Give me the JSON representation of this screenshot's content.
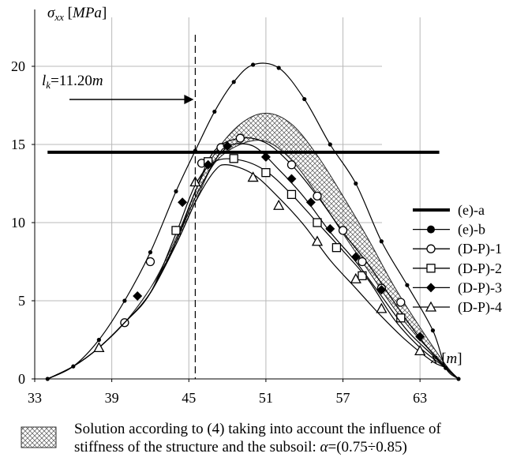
{
  "chart_data": {
    "type": "line",
    "ylabel_symbol": "σ",
    "ylabel_sub": "xx",
    "ylabel_unit": "MPa",
    "xlabel_var": "x",
    "xlabel_unit": "m",
    "xticks": [
      33,
      39,
      45,
      51,
      57,
      63
    ],
    "yticks": [
      0,
      5,
      10,
      15,
      20
    ],
    "xlim": [
      33,
      66
    ],
    "ylim": [
      0,
      21
    ],
    "grid": true,
    "legend_position": "right",
    "annotation": {
      "var": "l",
      "sub": "k",
      "value": "=11.20",
      "unit": "m",
      "x": 45.5
    },
    "hatched_band": {
      "lower": [
        [
          34,
          0
        ],
        [
          36,
          0.8
        ],
        [
          38,
          2.0
        ],
        [
          40,
          3.6
        ],
        [
          42,
          5.8
        ],
        [
          44,
          8.6
        ],
        [
          45.5,
          11.3
        ],
        [
          47,
          13.8
        ],
        [
          49,
          15.0
        ],
        [
          51,
          15.2
        ],
        [
          53,
          14.0
        ],
        [
          55,
          11.8
        ],
        [
          57,
          9.3
        ],
        [
          59,
          6.9
        ],
        [
          61,
          4.5
        ],
        [
          63,
          2.5
        ],
        [
          65,
          0.8
        ],
        [
          66,
          0
        ]
      ],
      "upper": [
        [
          34,
          0
        ],
        [
          36,
          0.8
        ],
        [
          38,
          2.0
        ],
        [
          40,
          3.6
        ],
        [
          42,
          5.8
        ],
        [
          44,
          9.0
        ],
        [
          45.5,
          12.0
        ],
        [
          47,
          14.4
        ],
        [
          49,
          16.3
        ],
        [
          51,
          17.0
        ],
        [
          53,
          16.3
        ],
        [
          55,
          14.3
        ],
        [
          57,
          11.7
        ],
        [
          59,
          8.9
        ],
        [
          61,
          5.9
        ],
        [
          63,
          3.3
        ],
        [
          65,
          0.9
        ],
        [
          66,
          0
        ]
      ]
    },
    "series": [
      {
        "name": "(e)-a",
        "marker": "none",
        "line_width": 4,
        "points": [
          [
            34,
            14.5
          ],
          [
            64.5,
            14.5
          ]
        ],
        "markers": []
      },
      {
        "name": "(e)-b",
        "marker": "dot",
        "line_width": 1.2,
        "points": [
          [
            34,
            0
          ],
          [
            36,
            0.8
          ],
          [
            38,
            2.5
          ],
          [
            40,
            5.0
          ],
          [
            42,
            8.1
          ],
          [
            44,
            12.0
          ],
          [
            45.5,
            14.6
          ],
          [
            47,
            17.1
          ],
          [
            48.5,
            19.0
          ],
          [
            50,
            20.1
          ],
          [
            52,
            19.9
          ],
          [
            54,
            17.9
          ],
          [
            56,
            15.0
          ],
          [
            58,
            12.5
          ],
          [
            60,
            8.8
          ],
          [
            62,
            6.0
          ],
          [
            64,
            3.1
          ],
          [
            65,
            0.7
          ],
          [
            66,
            0
          ]
        ],
        "markers": [
          [
            34,
            0
          ],
          [
            36,
            0.8
          ],
          [
            38,
            2.5
          ],
          [
            40,
            5.0
          ],
          [
            42,
            8.1
          ],
          [
            44,
            12.0
          ],
          [
            45.5,
            14.6
          ],
          [
            47,
            17.1
          ],
          [
            48.5,
            19.0
          ],
          [
            50,
            20.1
          ],
          [
            52,
            19.9
          ],
          [
            54,
            17.9
          ],
          [
            56,
            15.0
          ],
          [
            58,
            12.5
          ],
          [
            60,
            8.8
          ],
          [
            62,
            6.0
          ],
          [
            64,
            3.1
          ],
          [
            65,
            0.7
          ],
          [
            66,
            0
          ]
        ]
      },
      {
        "name": "(D-P)-1",
        "marker": "open_circle",
        "line_width": 1.2,
        "points": [
          [
            34,
            0
          ],
          [
            36,
            0.8
          ],
          [
            38,
            2.0
          ],
          [
            40,
            3.6
          ],
          [
            42,
            5.5
          ],
          [
            44,
            8.8
          ],
          [
            45.5,
            12.0
          ],
          [
            47,
            14.6
          ],
          [
            49,
            15.4
          ],
          [
            51,
            15.1
          ],
          [
            53,
            13.7
          ],
          [
            55,
            11.7
          ],
          [
            57,
            9.4
          ],
          [
            59,
            7.3
          ],
          [
            61,
            4.9
          ],
          [
            63,
            2.6
          ],
          [
            65,
            0.7
          ],
          [
            66,
            0
          ]
        ],
        "markers": [
          [
            40,
            3.6
          ],
          [
            42,
            7.5
          ],
          [
            44,
            9.5
          ],
          [
            46,
            13.8
          ],
          [
            47.5,
            14.8
          ],
          [
            49,
            15.4
          ],
          [
            53,
            13.7
          ],
          [
            55,
            11.7
          ],
          [
            57,
            9.5
          ],
          [
            58.5,
            7.5
          ],
          [
            60,
            5.8
          ],
          [
            61.5,
            4.9
          ]
        ]
      },
      {
        "name": "(D-P)-2",
        "marker": "open_square",
        "line_width": 1.2,
        "points": [
          [
            34,
            0
          ],
          [
            36,
            0.8
          ],
          [
            38,
            2.0
          ],
          [
            40,
            3.6
          ],
          [
            42,
            5.5
          ],
          [
            44,
            9.3
          ],
          [
            45.5,
            12.4
          ],
          [
            47,
            13.9
          ],
          [
            49,
            14.0
          ],
          [
            51,
            13.3
          ],
          [
            53,
            11.8
          ],
          [
            55,
            10.0
          ],
          [
            57,
            8.2
          ],
          [
            59,
            6.3
          ],
          [
            61,
            3.8
          ],
          [
            63,
            2.0
          ],
          [
            65,
            0.7
          ],
          [
            66,
            0
          ]
        ],
        "markers": [
          [
            44,
            9.5
          ],
          [
            46.5,
            13.9
          ],
          [
            48.5,
            14.1
          ],
          [
            51,
            13.2
          ],
          [
            53,
            11.8
          ],
          [
            55,
            10.0
          ],
          [
            56.5,
            8.4
          ],
          [
            58.5,
            6.6
          ],
          [
            61.5,
            3.9
          ]
        ]
      },
      {
        "name": "(D-P)-3",
        "marker": "filled_diamond",
        "line_width": 1.2,
        "points": [
          [
            34,
            0
          ],
          [
            36,
            0.8
          ],
          [
            38,
            2.0
          ],
          [
            40,
            3.6
          ],
          [
            42,
            5.5
          ],
          [
            44,
            8.8
          ],
          [
            45.5,
            11.6
          ],
          [
            47,
            13.9
          ],
          [
            48,
            14.9
          ],
          [
            50,
            14.9
          ],
          [
            52,
            13.4
          ],
          [
            54,
            11.6
          ],
          [
            56,
            9.4
          ],
          [
            58,
            7.5
          ],
          [
            60,
            5.3
          ],
          [
            62,
            3.1
          ],
          [
            64,
            1.5
          ],
          [
            65,
            0.7
          ],
          [
            66,
            0
          ]
        ],
        "markers": [
          [
            41,
            5.3
          ],
          [
            44.5,
            11.3
          ],
          [
            46.5,
            13.7
          ],
          [
            48,
            14.9
          ],
          [
            51,
            14.2
          ],
          [
            53,
            12.8
          ],
          [
            54.5,
            11.3
          ],
          [
            56,
            9.6
          ],
          [
            58,
            7.8
          ],
          [
            60,
            5.7
          ],
          [
            63,
            2.7
          ]
        ]
      },
      {
        "name": "(D-P)-4",
        "marker": "open_triangle",
        "line_width": 1.2,
        "points": [
          [
            34,
            0
          ],
          [
            36,
            0.8
          ],
          [
            38,
            2.0
          ],
          [
            40,
            3.6
          ],
          [
            42,
            5.5
          ],
          [
            44,
            8.6
          ],
          [
            45.5,
            11.3
          ],
          [
            47,
            13.3
          ],
          [
            48,
            13.7
          ],
          [
            50,
            13.1
          ],
          [
            52,
            11.6
          ],
          [
            54,
            9.8
          ],
          [
            56,
            7.6
          ],
          [
            58,
            5.8
          ],
          [
            60,
            4.0
          ],
          [
            62,
            2.4
          ],
          [
            64,
            1.1
          ],
          [
            65,
            0.7
          ],
          [
            66,
            0
          ]
        ],
        "markers": [
          [
            38,
            2.0
          ],
          [
            45.5,
            12.6
          ],
          [
            50,
            12.9
          ],
          [
            52,
            11.1
          ],
          [
            55,
            8.8
          ],
          [
            58,
            6.4
          ],
          [
            60,
            4.5
          ],
          [
            63,
            1.8
          ]
        ]
      }
    ]
  },
  "footer": {
    "text_line1": "Solution according to (4) taking into account the influence of",
    "text_line2_prefix": "stiffness of the structure and the subsoil:",
    "alpha_symbol": "α",
    "alpha_value": "=(0.75÷0.85)"
  }
}
